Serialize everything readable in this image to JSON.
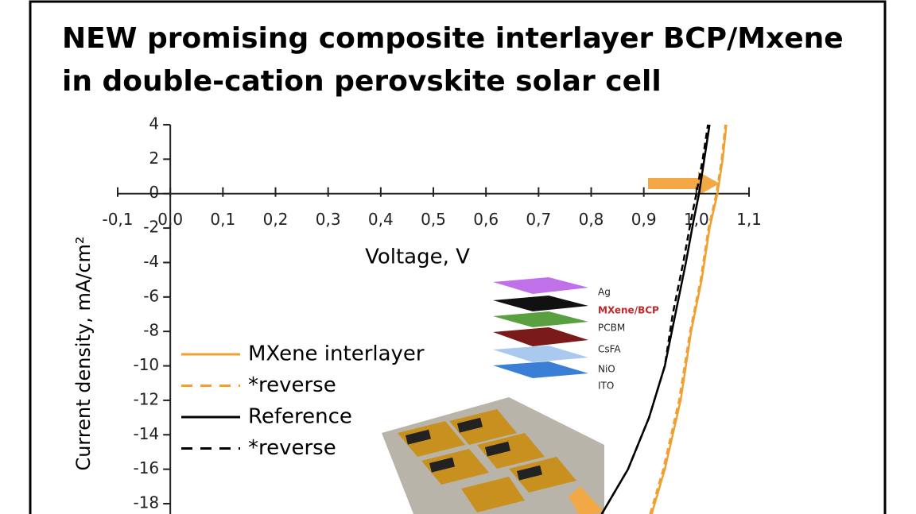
{
  "chart_data": {
    "type": "line",
    "title": [
      "NEW promising composite interlayer BCP/Mxene",
      "in double-cation perovskite solar cell"
    ],
    "x_label": "Voltage, V",
    "y_label": "Current density, mA/cm²",
    "xlim": [
      -0.1,
      1.1
    ],
    "ylim": [
      -18.6,
      4
    ],
    "xticks": [
      {
        "value": -0.1,
        "label": "-0,1"
      },
      {
        "value": 0,
        "label": "0,0"
      },
      {
        "value": 0.1,
        "label": "0,1"
      },
      {
        "value": 0.2,
        "label": "0,2"
      },
      {
        "value": 0.3,
        "label": "0,3"
      },
      {
        "value": 0.4,
        "label": "0,4"
      },
      {
        "value": 0.5,
        "label": "0,5"
      },
      {
        "value": 0.6,
        "label": "0,6"
      },
      {
        "value": 0.7,
        "label": "0,7"
      },
      {
        "value": 0.8,
        "label": "0,8"
      },
      {
        "value": 0.9,
        "label": "0,9"
      },
      {
        "value": 1.0,
        "label": "1,0"
      },
      {
        "value": 1.1,
        "label": "1,1"
      }
    ],
    "yticks": [
      4,
      2,
      0,
      -2,
      -4,
      -6,
      -8,
      -10,
      -12,
      -14,
      -16,
      -18
    ],
    "series": [
      {
        "name": "MXene interlayer",
        "color": "#f0a030",
        "dashed": false,
        "x": [
          0.915,
          0.94,
          0.97,
          0.99,
          1.01,
          1.025,
          1.04,
          1.05,
          1.057
        ],
        "values": [
          -18.6,
          -16,
          -12,
          -8,
          -5,
          -2,
          0,
          2,
          4
        ]
      },
      {
        "name": "*reverse",
        "color": "#f0a030",
        "dashed": true,
        "x": [
          0.912,
          0.937,
          0.967,
          0.988,
          1.008,
          1.023,
          1.038,
          1.048,
          1.055
        ],
        "values": [
          -18.6,
          -16,
          -12,
          -8,
          -5,
          -2,
          0,
          2,
          4
        ]
      },
      {
        "name": "Reference",
        "color": "#000000",
        "dashed": false,
        "x": [
          0.82,
          0.87,
          0.91,
          0.94,
          0.96,
          0.98,
          0.995,
          1.005,
          1.015,
          1.025
        ],
        "values": [
          -18.6,
          -16,
          -13,
          -10,
          -7,
          -4,
          -1.5,
          0,
          2,
          4
        ]
      },
      {
        "name": "*reverse",
        "color": "#000000",
        "dashed": true,
        "x": [
          0.82,
          0.87,
          0.91,
          0.94,
          0.955,
          0.975,
          0.99,
          1.0,
          1.012,
          1.022
        ],
        "values": [
          -18.6,
          -16,
          -13,
          -10,
          -7,
          -4,
          -1.5,
          0,
          2,
          4
        ]
      }
    ],
    "inset_labels": [
      "Ag",
      "MXene/BCP",
      "PCBM",
      "CsFA",
      "NiO",
      "ITO"
    ]
  }
}
